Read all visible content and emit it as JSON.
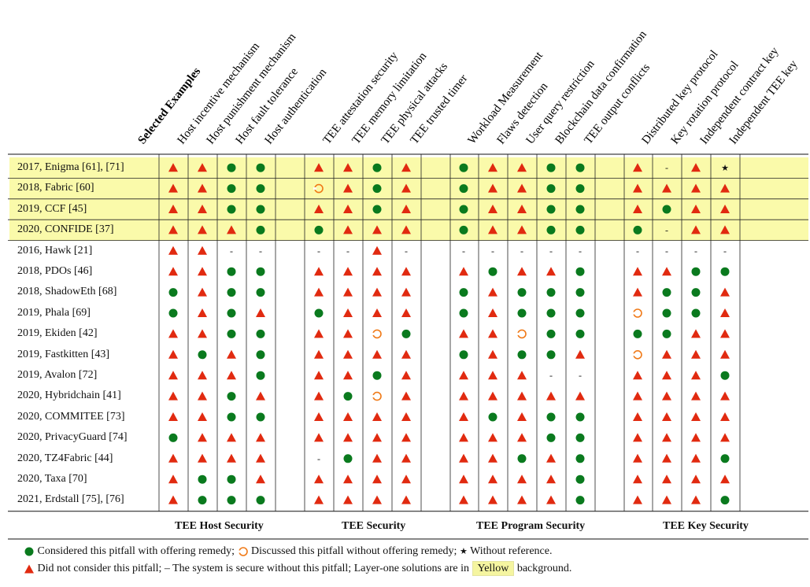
{
  "header": {
    "selected_label": "Selected Examples",
    "columns": [
      "Host incentive mechanism",
      "Host punishment mechanism",
      "Host fault tolerance",
      "Host authentication",
      "TEE attestation security",
      "TEE memory limitation",
      "TEE physical attacks",
      "TEE trusted timer",
      "Workload Measurement",
      "Flaws detection",
      "User query restriction",
      "Blockchain data confirmation",
      "TEE output conflicts",
      "Distributed key protocol",
      "Key rotation protocol",
      "Independent contract key",
      "Independent TEE key"
    ]
  },
  "groups": [
    "TEE Host Security",
    "TEE Security",
    "TEE Program Security",
    "TEE Key Security"
  ],
  "rows": [
    {
      "label": "2017, Enigma [61], [71]",
      "yellow": true,
      "cells": [
        "R",
        "R",
        "G",
        "G",
        "R",
        "R",
        "G",
        "R",
        "G",
        "R",
        "R",
        "G",
        "G",
        "R",
        "D",
        "R",
        "S"
      ]
    },
    {
      "label": "2018, Fabric [60]",
      "yellow": true,
      "cells": [
        "R",
        "R",
        "G",
        "G",
        "O",
        "R",
        "G",
        "R",
        "G",
        "R",
        "R",
        "G",
        "G",
        "R",
        "R",
        "R",
        "R"
      ]
    },
    {
      "label": "2019, CCF [45]",
      "yellow": true,
      "cells": [
        "R",
        "R",
        "G",
        "G",
        "R",
        "R",
        "G",
        "R",
        "G",
        "R",
        "R",
        "G",
        "G",
        "R",
        "G",
        "R",
        "R"
      ]
    },
    {
      "label": "2020, CONFIDE [37]",
      "yellow": true,
      "cells": [
        "R",
        "R",
        "R",
        "G",
        "G",
        "R",
        "R",
        "R",
        "G",
        "R",
        "R",
        "G",
        "G",
        "G",
        "D",
        "R",
        "R"
      ]
    },
    {
      "label": "2016, Hawk [21]",
      "yellow": false,
      "cells": [
        "R",
        "R",
        "D",
        "D",
        "D",
        "D",
        "R",
        "D",
        "D",
        "D",
        "D",
        "D",
        "D",
        "D",
        "D",
        "D",
        "D"
      ]
    },
    {
      "label": "2018, PDOs [46]",
      "yellow": false,
      "cells": [
        "R",
        "R",
        "G",
        "G",
        "R",
        "R",
        "R",
        "R",
        "R",
        "G",
        "R",
        "R",
        "G",
        "R",
        "R",
        "G",
        "G"
      ]
    },
    {
      "label": "2018, ShadowEth [68]",
      "yellow": false,
      "cells": [
        "G",
        "R",
        "G",
        "G",
        "R",
        "R",
        "R",
        "R",
        "G",
        "R",
        "G",
        "G",
        "G",
        "R",
        "G",
        "G",
        "R"
      ]
    },
    {
      "label": "2019, Phala [69]",
      "yellow": false,
      "cells": [
        "G",
        "R",
        "G",
        "R",
        "G",
        "R",
        "R",
        "R",
        "G",
        "R",
        "G",
        "G",
        "G",
        "O",
        "G",
        "G",
        "R"
      ]
    },
    {
      "label": "2019, Ekiden [42]",
      "yellow": false,
      "cells": [
        "R",
        "R",
        "G",
        "G",
        "R",
        "R",
        "O",
        "G",
        "R",
        "R",
        "O",
        "G",
        "G",
        "G",
        "G",
        "R",
        "R"
      ]
    },
    {
      "label": "2019, Fastkitten [43]",
      "yellow": false,
      "cells": [
        "R",
        "G",
        "R",
        "G",
        "R",
        "R",
        "R",
        "R",
        "G",
        "R",
        "G",
        "G",
        "R",
        "O",
        "R",
        "R",
        "R"
      ]
    },
    {
      "label": "2019, Avalon [72]",
      "yellow": false,
      "cells": [
        "R",
        "R",
        "R",
        "G",
        "R",
        "R",
        "G",
        "R",
        "R",
        "R",
        "R",
        "D",
        "D",
        "R",
        "R",
        "R",
        "G"
      ]
    },
    {
      "label": "2020, Hybridchain [41]",
      "yellow": false,
      "cells": [
        "R",
        "R",
        "G",
        "R",
        "R",
        "G",
        "O",
        "R",
        "R",
        "R",
        "R",
        "R",
        "R",
        "R",
        "R",
        "R",
        "R"
      ]
    },
    {
      "label": "2020, COMMITEE [73]",
      "yellow": false,
      "cells": [
        "R",
        "R",
        "G",
        "G",
        "R",
        "R",
        "R",
        "R",
        "R",
        "G",
        "R",
        "G",
        "G",
        "R",
        "R",
        "R",
        "R"
      ]
    },
    {
      "label": "2020, PrivacyGuard [74]",
      "yellow": false,
      "cells": [
        "G",
        "R",
        "R",
        "R",
        "R",
        "R",
        "R",
        "R",
        "R",
        "R",
        "R",
        "G",
        "G",
        "R",
        "R",
        "R",
        "R"
      ]
    },
    {
      "label": "2020, TZ4Fabric [44]",
      "yellow": false,
      "cells": [
        "R",
        "R",
        "R",
        "R",
        "D",
        "G",
        "R",
        "R",
        "R",
        "R",
        "G",
        "R",
        "G",
        "R",
        "R",
        "R",
        "G"
      ]
    },
    {
      "label": "2020, Taxa [70]",
      "yellow": false,
      "cells": [
        "R",
        "G",
        "G",
        "R",
        "R",
        "R",
        "R",
        "R",
        "R",
        "R",
        "R",
        "R",
        "G",
        "R",
        "R",
        "R",
        "R"
      ]
    },
    {
      "label": "2021, Erdstall [75], [76]",
      "yellow": false,
      "cells": [
        "R",
        "G",
        "G",
        "G",
        "R",
        "R",
        "R",
        "R",
        "R",
        "R",
        "R",
        "R",
        "G",
        "R",
        "R",
        "R",
        "G"
      ]
    }
  ],
  "legend": {
    "line1_a": "Considered this pitfall with offering remedy;",
    "line1_b": "Discussed this pitfall without offering remedy;",
    "line1_c": "Without reference.",
    "line2_a": "Did not consider this pitfall;",
    "line2_b": "The system is secure without this pitfall;",
    "line2_c": "Layer-one solutions are in",
    "line2_d": "Yellow",
    "line2_e": "background."
  },
  "colors": {
    "green": "#0a7a1e",
    "red": "#e12a10",
    "orange": "#f07a18",
    "yellow": "#fafaaa"
  }
}
